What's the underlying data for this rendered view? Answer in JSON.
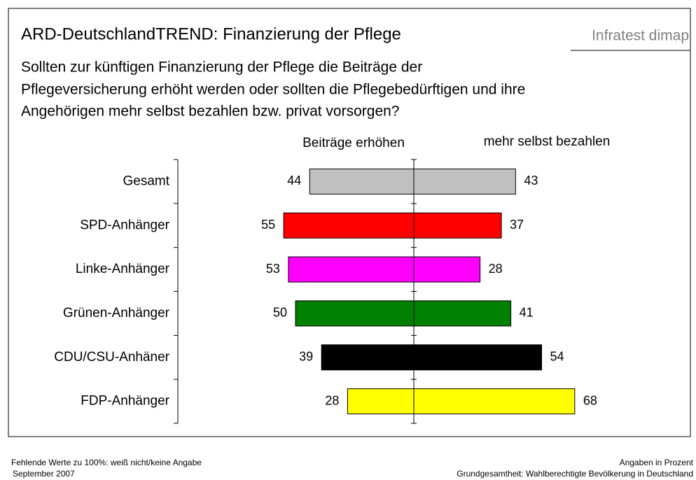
{
  "chart_data": {
    "type": "diverging-bar",
    "title": "ARD-DeutschlandTREND: Finanzierung der Pflege",
    "brand": "Infratest dimap",
    "question": [
      "Sollten zur künftigen Finanzierung der Pflege die Beiträge der",
      "Pflegeversicherung erhöht werden oder sollten die Pflegebedürftigen und ihre",
      "Angehörigen mehr selbst bezahlen bzw. privat vorsorgen?"
    ],
    "categories": [
      "Gesamt",
      "SPD-Anhänger",
      "Linke-Anhänger",
      "Grünen-Anhänger",
      "CDU/CSU-Anhäner",
      "FDP-Anhänger"
    ],
    "colors": [
      "#c0c0c0",
      "#ff0000",
      "#ff00ff",
      "#008000",
      "#000000",
      "#ffff00"
    ],
    "series": [
      {
        "name": "Beiträge erhöhen",
        "side": "left",
        "values": [
          44,
          55,
          53,
          50,
          39,
          28
        ]
      },
      {
        "name": "mehr selbst bezahlen",
        "side": "right",
        "values": [
          43,
          37,
          28,
          41,
          54,
          68
        ]
      }
    ],
    "footnote_left": [
      "Fehlende Werte zu 100%: weiß nicht/keine Angabe",
      "September 2007"
    ],
    "footnote_right": [
      "Angaben in Prozent",
      "Grundgesamtheit: Wahlberechtigte Bevölkerung in Deutschland"
    ]
  }
}
